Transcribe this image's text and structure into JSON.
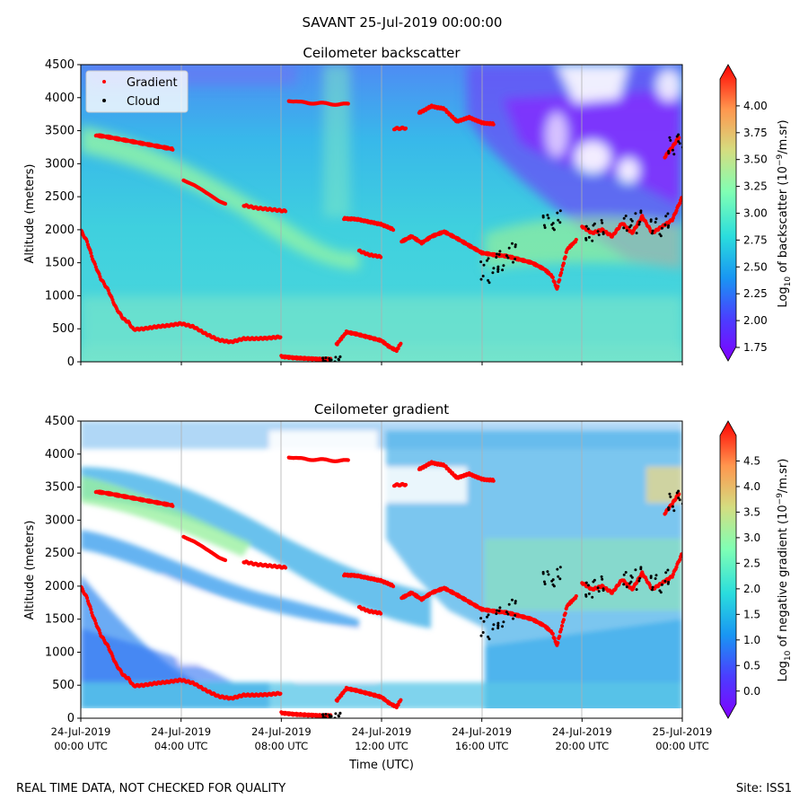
{
  "suptitle": "SAVANT 25-Jul-2019 00:00:00",
  "footer_left": "REAL TIME DATA, NOT CHECKED FOR QUALITY",
  "footer_right": "Site: ISS1",
  "colors": {
    "gradient_marker": "#ff0000",
    "cloud_marker": "#000000",
    "colormap": "rainbow"
  },
  "chart_data": [
    {
      "type": "heatmap",
      "title": "Ceilometer backscatter",
      "ylabel": "Altitude (meters)",
      "xlabel": "",
      "ylim": [
        0,
        4500
      ],
      "yticks": [
        0,
        500,
        1000,
        1500,
        2000,
        2500,
        3000,
        3500,
        4000,
        4500
      ],
      "xlim_hours": [
        0,
        24
      ],
      "xtick_hours": [
        0,
        4,
        8,
        12,
        16,
        20,
        24
      ],
      "grid": "vertical",
      "legend": {
        "position": "top-left",
        "entries": [
          "Gradient",
          "Cloud"
        ]
      },
      "colorbar": {
        "label_pre": "Log",
        "label_sub": "10",
        "label_mid": " of backscatter (10",
        "label_sup": "−9",
        "label_post": "/m.sr)",
        "range": [
          1.75,
          4.25
        ],
        "ticks": [
          "1.75",
          "2.00",
          "2.25",
          "2.50",
          "2.75",
          "3.00",
          "3.25",
          "3.50",
          "3.75",
          "4.00"
        ]
      },
      "series": [
        {
          "name": "Gradient",
          "marker": "red dots"
        },
        {
          "name": "Cloud",
          "marker": "black dots"
        }
      ]
    },
    {
      "type": "heatmap",
      "title": "Ceilometer gradient",
      "ylabel": "Altitude (meters)",
      "xlabel": "Time (UTC)",
      "ylim": [
        0,
        4500
      ],
      "yticks": [
        0,
        500,
        1000,
        1500,
        2000,
        2500,
        3000,
        3500,
        4000,
        4500
      ],
      "xlim_hours": [
        0,
        24
      ],
      "xtick_hours": [
        0,
        4,
        8,
        12,
        16,
        20,
        24
      ],
      "xtick_labels": [
        [
          "24-Jul-2019",
          "00:00 UTC"
        ],
        [
          "24-Jul-2019",
          "04:00 UTC"
        ],
        [
          "24-Jul-2019",
          "08:00 UTC"
        ],
        [
          "24-Jul-2019",
          "12:00 UTC"
        ],
        [
          "24-Jul-2019",
          "16:00 UTC"
        ],
        [
          "24-Jul-2019",
          "20:00 UTC"
        ],
        [
          "25-Jul-2019",
          "00:00 UTC"
        ]
      ],
      "grid": "vertical",
      "colorbar": {
        "label_pre": "Log",
        "label_sub": "10",
        "label_mid": " of negative gradient (10",
        "label_sup": "−9",
        "label_post": "/m.sr)",
        "range": [
          -0.25,
          5.0
        ],
        "ticks": [
          "0.0",
          "0.5",
          "1.0",
          "1.5",
          "2.0",
          "2.5",
          "3.0",
          "3.5",
          "4.0",
          "4.5"
        ]
      },
      "series": [
        {
          "name": "Gradient",
          "marker": "red dots"
        },
        {
          "name": "Cloud",
          "marker": "black dots"
        }
      ]
    }
  ],
  "gradient_layers": [
    [
      [
        0.0,
        1990
      ],
      [
        0.25,
        1820
      ],
      [
        0.5,
        1530
      ],
      [
        0.8,
        1260
      ],
      [
        1.1,
        1080
      ],
      [
        1.4,
        820
      ],
      [
        1.7,
        650
      ],
      [
        1.9,
        600
      ],
      [
        2.1,
        490
      ],
      [
        2.5,
        500
      ],
      [
        3.0,
        530
      ],
      [
        3.5,
        550
      ],
      [
        4.0,
        580
      ],
      [
        4.5,
        530
      ],
      [
        5.0,
        420
      ],
      [
        5.5,
        330
      ],
      [
        6.0,
        300
      ],
      [
        6.5,
        350
      ],
      [
        7.0,
        350
      ],
      [
        7.5,
        360
      ],
      [
        8.0,
        380
      ]
    ],
    [
      [
        8.0,
        80
      ],
      [
        8.5,
        60
      ],
      [
        9.0,
        50
      ],
      [
        9.5,
        40
      ],
      [
        10.0,
        40
      ]
    ],
    [
      [
        10.2,
        260
      ],
      [
        10.6,
        450
      ],
      [
        11.0,
        420
      ],
      [
        11.5,
        370
      ],
      [
        12.0,
        320
      ],
      [
        12.3,
        230
      ],
      [
        12.6,
        170
      ],
      [
        12.8,
        300
      ]
    ],
    [
      [
        11.1,
        1680
      ],
      [
        11.5,
        1620
      ],
      [
        12.0,
        1590
      ]
    ],
    [
      [
        4.1,
        2760
      ],
      [
        4.5,
        2680
      ],
      [
        5.0,
        2550
      ],
      [
        5.5,
        2440
      ],
      [
        5.8,
        2400
      ]
    ],
    [
      [
        6.5,
        2370
      ],
      [
        7.0,
        2330
      ],
      [
        7.5,
        2310
      ],
      [
        8.2,
        2280
      ]
    ],
    [
      [
        10.5,
        2170
      ],
      [
        11.0,
        2160
      ],
      [
        11.5,
        2120
      ],
      [
        12.0,
        2080
      ],
      [
        12.5,
        2000
      ]
    ],
    [
      [
        12.8,
        1820
      ],
      [
        13.2,
        1900
      ],
      [
        13.6,
        1800
      ],
      [
        14.0,
        1900
      ],
      [
        14.5,
        1970
      ],
      [
        15.0,
        1870
      ],
      [
        15.5,
        1760
      ],
      [
        16.0,
        1650
      ],
      [
        16.5,
        1620
      ],
      [
        17.0,
        1600
      ],
      [
        17.5,
        1550
      ],
      [
        18.0,
        1500
      ],
      [
        18.5,
        1400
      ],
      [
        18.8,
        1300
      ],
      [
        19.0,
        1100
      ],
      [
        19.4,
        1700
      ],
      [
        19.8,
        1850
      ]
    ],
    [
      [
        20.0,
        2050
      ],
      [
        20.4,
        1950
      ],
      [
        20.8,
        2000
      ],
      [
        21.2,
        1900
      ],
      [
        21.6,
        2100
      ],
      [
        22.0,
        1950
      ],
      [
        22.4,
        2200
      ],
      [
        22.8,
        1950
      ],
      [
        23.2,
        2050
      ],
      [
        23.6,
        2150
      ],
      [
        24.0,
        2500
      ]
    ],
    [
      [
        8.3,
        3960
      ],
      [
        8.7,
        3930
      ],
      [
        10.3,
        3900
      ],
      [
        10.7,
        3900
      ]
    ],
    [
      [
        12.5,
        3530
      ],
      [
        13.0,
        3540
      ]
    ],
    [
      [
        13.5,
        3770
      ],
      [
        14.0,
        3870
      ],
      [
        14.5,
        3830
      ],
      [
        15.0,
        3640
      ],
      [
        15.5,
        3700
      ],
      [
        16.0,
        3620
      ],
      [
        16.5,
        3600
      ]
    ],
    [
      [
        0.6,
        3430
      ],
      [
        1.0,
        3410
      ],
      [
        3.4,
        3240
      ],
      [
        3.7,
        3220
      ]
    ],
    [
      [
        23.3,
        3100
      ],
      [
        23.6,
        3250
      ],
      [
        23.9,
        3420
      ]
    ]
  ],
  "cloud_clusters": [
    [
      16.3,
      1200,
      1650
    ],
    [
      17.0,
      1350,
      1800
    ],
    [
      18.8,
      2000,
      2300
    ],
    [
      20.5,
      1800,
      2150
    ],
    [
      22.0,
      1950,
      2300
    ],
    [
      23.1,
      1900,
      2250
    ],
    [
      23.8,
      3100,
      3500
    ],
    [
      10.0,
      0,
      80
    ]
  ]
}
